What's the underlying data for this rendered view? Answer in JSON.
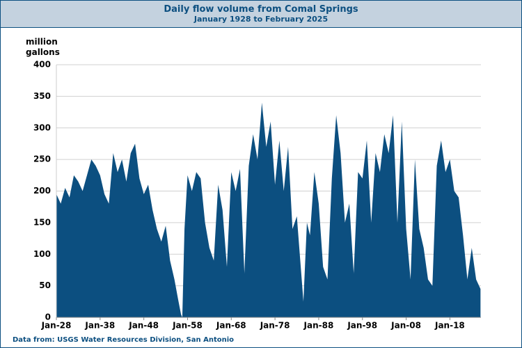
{
  "chart_data": {
    "type": "area",
    "title": "Daily flow volume from Comal Springs",
    "subtitle": "January 1928 to February 2025",
    "y_label": "million gallons",
    "source": "Data from:  USGS Water Resources Division, San Antonio",
    "color": "#0c4f80",
    "grid": true,
    "xlim": [
      1928,
      2025.1
    ],
    "ylim": [
      0,
      400
    ],
    "yticks": [
      0,
      50,
      100,
      150,
      200,
      250,
      300,
      350,
      400
    ],
    "xticks": [
      {
        "value": 1928,
        "label": "Jan-28"
      },
      {
        "value": 1938,
        "label": "Jan-38"
      },
      {
        "value": 1948,
        "label": "Jan-48"
      },
      {
        "value": 1958,
        "label": "Jan-58"
      },
      {
        "value": 1968,
        "label": "Jan-68"
      },
      {
        "value": 1978,
        "label": "Jan-78"
      },
      {
        "value": 1988,
        "label": "Jan-88"
      },
      {
        "value": 1998,
        "label": "Jan-98"
      },
      {
        "value": 2008,
        "label": "Jan-08"
      },
      {
        "value": 2018,
        "label": "Jan-18"
      }
    ],
    "x": [
      1928,
      1929,
      1930,
      1931,
      1932,
      1933,
      1934,
      1935,
      1936,
      1937,
      1938,
      1939,
      1940,
      1941,
      1942,
      1943,
      1944,
      1945,
      1946,
      1947,
      1948,
      1949,
      1950,
      1951,
      1952,
      1953,
      1954,
      1955,
      1955.8,
      1956.5,
      1956.8,
      1957.3,
      1958,
      1959,
      1960,
      1961,
      1962,
      1963,
      1964,
      1965,
      1966,
      1967,
      1968,
      1969,
      1970,
      1971,
      1972,
      1973,
      1974,
      1975,
      1976,
      1977,
      1978,
      1979,
      1980,
      1981,
      1982,
      1983,
      1984,
      1984.5,
      1985.3,
      1986,
      1987,
      1988,
      1989,
      1990,
      1991,
      1992,
      1993,
      1994,
      1995,
      1996,
      1997,
      1998,
      1999,
      2000,
      2001,
      2002,
      2003,
      2004,
      2005,
      2006,
      2007,
      2008,
      2009,
      2010,
      2011,
      2012,
      2013,
      2014,
      2015,
      2016,
      2017,
      2018,
      2019,
      2020,
      2021,
      2022,
      2023,
      2024,
      2025
    ],
    "values": [
      195,
      180,
      205,
      190,
      225,
      215,
      200,
      225,
      250,
      240,
      225,
      195,
      180,
      260,
      230,
      250,
      215,
      260,
      275,
      220,
      195,
      210,
      170,
      140,
      120,
      145,
      90,
      60,
      30,
      5,
      0,
      140,
      225,
      200,
      230,
      220,
      150,
      110,
      90,
      210,
      170,
      80,
      230,
      200,
      235,
      70,
      240,
      290,
      250,
      340,
      270,
      310,
      210,
      280,
      200,
      270,
      140,
      160,
      70,
      25,
      150,
      130,
      230,
      180,
      80,
      60,
      220,
      320,
      260,
      150,
      180,
      70,
      230,
      220,
      280,
      150,
      260,
      230,
      290,
      260,
      320,
      150,
      310,
      140,
      60,
      250,
      140,
      110,
      60,
      50,
      240,
      280,
      230,
      250,
      200,
      190,
      130,
      60,
      110,
      60,
      45
    ]
  }
}
